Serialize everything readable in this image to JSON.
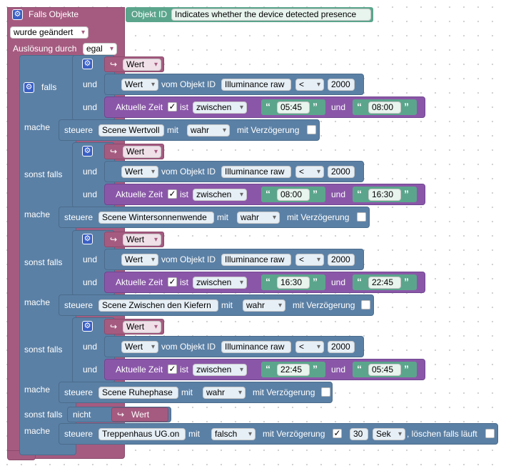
{
  "trigger": {
    "title": "Falls Objekte",
    "object_id_label": "Objekt ID",
    "object_id_value": "Indicates whether the device detected presence",
    "changed_option": "wurde geändert",
    "trigger_by_label": "Auslösung durch",
    "trigger_by_value": "egal"
  },
  "labels": {
    "falls": "falls",
    "sonst_falls": "sonst falls",
    "mache": "mache",
    "und": "und",
    "wert": "Wert",
    "vom_objekt_id": "vom Objekt ID",
    "aktuelle_zeit": "Aktuelle Zeit",
    "ist": "ist",
    "zwischen": "zwischen",
    "steuere": "steuere",
    "mit": "mit",
    "mit_verzoegerung": "mit Verzögerung",
    "nicht": "nicht",
    "loeschen": ", löschen falls läuft",
    "checkmark": "✓",
    "lt": "<",
    "illuminance": "Illuminance raw",
    "threshold": "2000",
    "open_quote": "“",
    "close_quote": "”"
  },
  "branches": [
    {
      "start": "05:45",
      "end": "08:00",
      "scene": "Scene Wertvoll",
      "value": "wahr"
    },
    {
      "start": "08:00",
      "end": "16:30",
      "scene": "Scene Wintersonnenwende",
      "value": "wahr"
    },
    {
      "start": "16:30",
      "end": "22:45",
      "scene": "Scene Zwischen den Kiefern",
      "value": "wahr"
    },
    {
      "start": "22:45",
      "end": "05:45",
      "scene": "Scene Ruhephase",
      "value": "wahr"
    }
  ],
  "final": {
    "target": "Treppenhaus UG.on",
    "value": "falsch",
    "delay": "30",
    "unit": "Sek"
  },
  "colors": {
    "event": "#a55b80",
    "logic": "#5b80a5",
    "time": "#8a57a8",
    "text": "#5ba58c"
  }
}
